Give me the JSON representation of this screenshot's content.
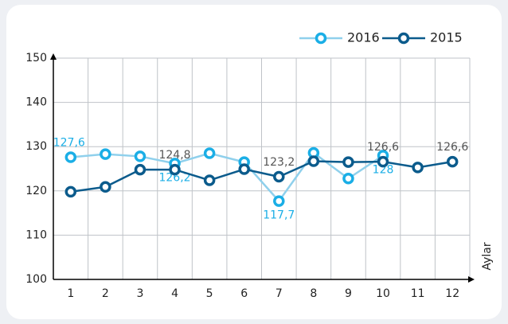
{
  "chart_data": {
    "type": "line",
    "x_label": "Aylar",
    "categories": [
      1,
      2,
      3,
      4,
      5,
      6,
      7,
      8,
      9,
      10,
      11,
      12
    ],
    "series": [
      {
        "name": "2016",
        "color": "#1aaee6",
        "line_color": "#8fd0ec",
        "values": [
          127.6,
          128.3,
          127.8,
          126.2,
          128.5,
          126.5,
          117.7,
          128.6,
          122.8,
          128,
          null,
          null
        ],
        "value_labels": [
          "127,6",
          null,
          null,
          "126,2",
          null,
          null,
          "117,7",
          null,
          null,
          "128",
          null,
          null
        ]
      },
      {
        "name": "2015",
        "color": "#0b5b8c",
        "line_color": "#0b5b8c",
        "values": [
          119.8,
          120.9,
          124.8,
          124.8,
          122.4,
          124.9,
          123.2,
          126.7,
          126.5,
          126.6,
          125.3,
          126.6
        ],
        "value_labels": [
          null,
          null,
          null,
          "124,8",
          null,
          null,
          "123,2",
          null,
          null,
          "126,6",
          null,
          "126,6"
        ]
      }
    ],
    "ylim": [
      100,
      150
    ],
    "yticks": [
      100,
      110,
      120,
      130,
      140,
      150
    ],
    "grid": true
  }
}
